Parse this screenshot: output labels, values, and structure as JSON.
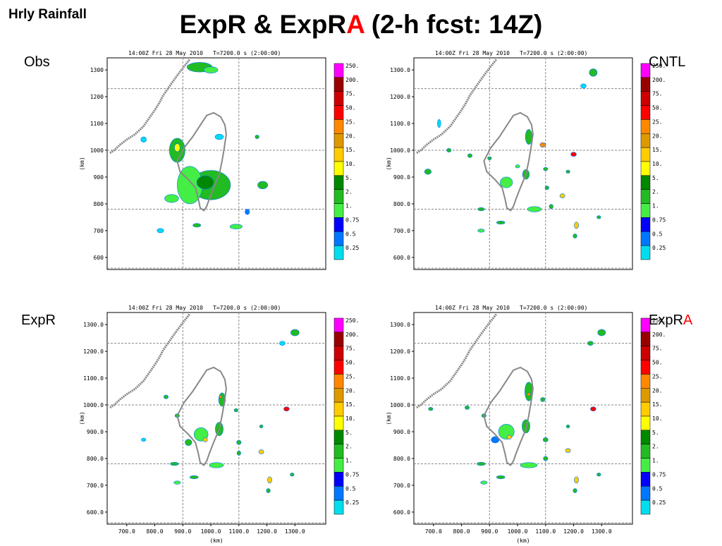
{
  "slide": {
    "corner_title": "Hrly Rainfall",
    "title_part1": "ExpR & ExpR",
    "title_accent": "A",
    "title_part2": " (2-h fcst: 14Z)",
    "accent_color": "#ff0000"
  },
  "panels": [
    {
      "id": "obs",
      "label": "Obs",
      "label_accent": "",
      "header_time": "14:00Z Fri 28 May 2010",
      "header_t": "T=7200.0 s (2:00:00)",
      "ylabel": "(km)",
      "ytick_labels": [
        "1300",
        "1200",
        "1100",
        "1000",
        "900",
        "800",
        "700",
        "600"
      ],
      "xtick_labels": [],
      "xlabel": ""
    },
    {
      "id": "cntl",
      "label": "CNTL",
      "label_accent": "",
      "header_time": "14:00Z Fri 28 May 2010",
      "header_t": "T=7200.0 s (2:00:00)",
      "ylabel": "(km)",
      "ytick_labels": [
        "1300.0",
        "1200.0",
        "1100.0",
        "1000.0",
        "900.0",
        "800.0",
        "700.0",
        "600.0"
      ],
      "xtick_labels": [],
      "xlabel": ""
    },
    {
      "id": "expr",
      "label": "ExpR",
      "label_accent": "",
      "header_time": "14:00Z Fri 28 May 2010",
      "header_t": "T=7200.0 s (2:00:00)",
      "ylabel": "(km)",
      "ytick_labels": [
        "1300.0",
        "1200.0",
        "1100.0",
        "1000.0",
        "900.0",
        "800.0",
        "700.0",
        "600.0"
      ],
      "xtick_labels": [
        "700.0",
        "800.0",
        "900.0",
        "1000.0",
        "1100.0",
        "1200.0",
        "1300.0"
      ],
      "xlabel": "(km)"
    },
    {
      "id": "expra",
      "label": "ExpR",
      "label_accent": "A",
      "header_time": "14:00Z Fri 28 May 2010",
      "header_t": "T=7200.0 s (2:00:00)",
      "ylabel": "(km)",
      "ytick_labels": [
        "1300.0",
        "1200.0",
        "1100.0",
        "1000.0",
        "900.0",
        "800.0",
        "700.0",
        "600.0"
      ],
      "xtick_labels": [
        "700.0",
        "800.0",
        "900.0",
        "1000.0",
        "1100.0",
        "1200.0",
        "1300.0"
      ],
      "xlabel": "(km)"
    }
  ],
  "legend": {
    "labels": [
      "250.",
      "200.",
      "75.",
      "50.",
      "25.",
      "20.",
      "15.",
      "10.",
      "5.",
      "2.",
      "1.",
      "0.75",
      "0.5",
      "0.25"
    ],
    "colors": [
      "#ff00ff",
      "#990000",
      "#cc0000",
      "#ff0000",
      "#ff8800",
      "#dd9900",
      "#ffcc00",
      "#ffff00",
      "#008800",
      "#22bb22",
      "#44ee44",
      "#0000ff",
      "#0077ff",
      "#00ddee"
    ]
  },
  "plot": {
    "x_range_km": [
      630,
      1410
    ],
    "y_range_km": [
      555,
      1345
    ],
    "grid_x_km": [
      900,
      1100
    ],
    "grid_y_km": [
      560,
      780,
      1000,
      1230
    ],
    "island_color": "#888888",
    "grid_color": "#888888"
  },
  "rain_cells": {
    "obs": [
      {
        "x": 1000,
        "y": 870,
        "rx": 70,
        "ry": 55,
        "c": "#22bb22"
      },
      {
        "x": 925,
        "y": 870,
        "rx": 45,
        "ry": 70,
        "c": "#44ee44"
      },
      {
        "x": 980,
        "y": 880,
        "rx": 30,
        "ry": 25,
        "c": "#008800"
      },
      {
        "x": 880,
        "y": 1000,
        "rx": 28,
        "ry": 45,
        "c": "#22bb22"
      },
      {
        "x": 880,
        "y": 1010,
        "rx": 10,
        "ry": 15,
        "c": "#ffff00"
      },
      {
        "x": 860,
        "y": 820,
        "rx": 25,
        "ry": 15,
        "c": "#44ee44"
      },
      {
        "x": 960,
        "y": 1310,
        "rx": 45,
        "ry": 18,
        "c": "#22bb22"
      },
      {
        "x": 1000,
        "y": 1300,
        "rx": 25,
        "ry": 12,
        "c": "#44ee44"
      },
      {
        "x": 1030,
        "y": 1050,
        "rx": 15,
        "ry": 10,
        "c": "#00ddee"
      },
      {
        "x": 1185,
        "y": 870,
        "rx": 18,
        "ry": 14,
        "c": "#22bb22"
      },
      {
        "x": 1090,
        "y": 715,
        "rx": 22,
        "ry": 9,
        "c": "#44ee44"
      },
      {
        "x": 950,
        "y": 720,
        "rx": 14,
        "ry": 7,
        "c": "#22bb22"
      },
      {
        "x": 1165,
        "y": 1050,
        "rx": 7,
        "ry": 7,
        "c": "#22bb22"
      },
      {
        "x": 1130,
        "y": 770,
        "rx": 8,
        "ry": 10,
        "c": "#0077ff"
      },
      {
        "x": 820,
        "y": 700,
        "rx": 12,
        "ry": 8,
        "c": "#00ddee"
      },
      {
        "x": 760,
        "y": 1040,
        "rx": 10,
        "ry": 10,
        "c": "#00ddee"
      }
    ],
    "cntl": [
      {
        "x": 1040,
        "y": 1050,
        "rx": 12,
        "ry": 28,
        "c": "#22bb22"
      },
      {
        "x": 1030,
        "y": 910,
        "rx": 12,
        "ry": 18,
        "c": "#22bb22"
      },
      {
        "x": 960,
        "y": 880,
        "rx": 22,
        "ry": 20,
        "c": "#44ee44"
      },
      {
        "x": 1090,
        "y": 1020,
        "rx": 10,
        "ry": 9,
        "c": "#ff8800"
      },
      {
        "x": 1000,
        "y": 940,
        "rx": 8,
        "ry": 6,
        "c": "#44ee44"
      },
      {
        "x": 1200,
        "y": 985,
        "rx": 10,
        "ry": 8,
        "c": "#ff0000"
      },
      {
        "x": 1100,
        "y": 930,
        "rx": 8,
        "ry": 6,
        "c": "#22bb22"
      },
      {
        "x": 1180,
        "y": 920,
        "rx": 7,
        "ry": 6,
        "c": "#22bb22"
      },
      {
        "x": 1105,
        "y": 860,
        "rx": 7,
        "ry": 7,
        "c": "#22bb22"
      },
      {
        "x": 1160,
        "y": 830,
        "rx": 9,
        "ry": 8,
        "c": "#ffcc00"
      },
      {
        "x": 1120,
        "y": 790,
        "rx": 7,
        "ry": 8,
        "c": "#22bb22"
      },
      {
        "x": 1210,
        "y": 720,
        "rx": 8,
        "ry": 12,
        "c": "#ffcc00"
      },
      {
        "x": 1205,
        "y": 680,
        "rx": 7,
        "ry": 8,
        "c": "#22bb22"
      },
      {
        "x": 1060,
        "y": 780,
        "rx": 25,
        "ry": 10,
        "c": "#44ee44"
      },
      {
        "x": 940,
        "y": 730,
        "rx": 15,
        "ry": 6,
        "c": "#22bb22"
      },
      {
        "x": 870,
        "y": 780,
        "rx": 12,
        "ry": 6,
        "c": "#22bb22"
      },
      {
        "x": 870,
        "y": 700,
        "rx": 12,
        "ry": 6,
        "c": "#44ee44"
      },
      {
        "x": 680,
        "y": 920,
        "rx": 12,
        "ry": 10,
        "c": "#22bb22"
      },
      {
        "x": 830,
        "y": 980,
        "rx": 8,
        "ry": 7,
        "c": "#22bb22"
      },
      {
        "x": 755,
        "y": 1000,
        "rx": 8,
        "ry": 7,
        "c": "#22bb22"
      },
      {
        "x": 900,
        "y": 970,
        "rx": 7,
        "ry": 6,
        "c": "#22bb22"
      },
      {
        "x": 1270,
        "y": 1290,
        "rx": 14,
        "ry": 14,
        "c": "#22bb22"
      },
      {
        "x": 1235,
        "y": 1240,
        "rx": 10,
        "ry": 8,
        "c": "#00ddee"
      },
      {
        "x": 1290,
        "y": 750,
        "rx": 7,
        "ry": 6,
        "c": "#22bb22"
      },
      {
        "x": 720,
        "y": 1100,
        "rx": 6,
        "ry": 15,
        "c": "#00ddee"
      }
    ],
    "expr": [
      {
        "x": 1040,
        "y": 1020,
        "rx": 12,
        "ry": 25,
        "c": "#22bb22"
      },
      {
        "x": 1030,
        "y": 910,
        "rx": 14,
        "ry": 25,
        "c": "#22bb22"
      },
      {
        "x": 965,
        "y": 890,
        "rx": 25,
        "ry": 25,
        "c": "#44ee44"
      },
      {
        "x": 980,
        "y": 870,
        "rx": 8,
        "ry": 8,
        "c": "#ffcc00"
      },
      {
        "x": 920,
        "y": 860,
        "rx": 12,
        "ry": 12,
        "c": "#22bb22"
      },
      {
        "x": 1035,
        "y": 1030,
        "rx": 5,
        "ry": 5,
        "c": "#ff8800"
      },
      {
        "x": 1090,
        "y": 980,
        "rx": 7,
        "ry": 6,
        "c": "#22bb22"
      },
      {
        "x": 1270,
        "y": 985,
        "rx": 10,
        "ry": 8,
        "c": "#ff0000"
      },
      {
        "x": 1100,
        "y": 860,
        "rx": 8,
        "ry": 8,
        "c": "#22bb22"
      },
      {
        "x": 1180,
        "y": 920,
        "rx": 6,
        "ry": 6,
        "c": "#22bb22"
      },
      {
        "x": 1180,
        "y": 825,
        "rx": 9,
        "ry": 8,
        "c": "#ffcc00"
      },
      {
        "x": 1100,
        "y": 820,
        "rx": 7,
        "ry": 8,
        "c": "#22bb22"
      },
      {
        "x": 1210,
        "y": 720,
        "rx": 8,
        "ry": 12,
        "c": "#ffcc00"
      },
      {
        "x": 1205,
        "y": 680,
        "rx": 7,
        "ry": 8,
        "c": "#22bb22"
      },
      {
        "x": 1020,
        "y": 775,
        "rx": 25,
        "ry": 10,
        "c": "#44ee44"
      },
      {
        "x": 940,
        "y": 730,
        "rx": 15,
        "ry": 6,
        "c": "#22bb22"
      },
      {
        "x": 870,
        "y": 780,
        "rx": 15,
        "ry": 6,
        "c": "#22bb22"
      },
      {
        "x": 880,
        "y": 710,
        "rx": 12,
        "ry": 6,
        "c": "#44ee44"
      },
      {
        "x": 760,
        "y": 870,
        "rx": 8,
        "ry": 6,
        "c": "#00ddee"
      },
      {
        "x": 880,
        "y": 960,
        "rx": 8,
        "ry": 7,
        "c": "#22bb22"
      },
      {
        "x": 840,
        "y": 1030,
        "rx": 8,
        "ry": 7,
        "c": "#22bb22"
      },
      {
        "x": 1300,
        "y": 1270,
        "rx": 15,
        "ry": 12,
        "c": "#22bb22"
      },
      {
        "x": 1255,
        "y": 1230,
        "rx": 10,
        "ry": 8,
        "c": "#00ddee"
      },
      {
        "x": 1290,
        "y": 740,
        "rx": 7,
        "ry": 6,
        "c": "#22bb22"
      }
    ],
    "expra": [
      {
        "x": 1040,
        "y": 1050,
        "rx": 14,
        "ry": 35,
        "c": "#22bb22"
      },
      {
        "x": 1030,
        "y": 920,
        "rx": 14,
        "ry": 25,
        "c": "#22bb22"
      },
      {
        "x": 960,
        "y": 900,
        "rx": 28,
        "ry": 28,
        "c": "#44ee44"
      },
      {
        "x": 970,
        "y": 880,
        "rx": 8,
        "ry": 8,
        "c": "#ffcc00"
      },
      {
        "x": 1040,
        "y": 1040,
        "rx": 6,
        "ry": 6,
        "c": "#ff8800"
      },
      {
        "x": 920,
        "y": 870,
        "rx": 14,
        "ry": 12,
        "c": "#0077ff"
      },
      {
        "x": 1090,
        "y": 1020,
        "rx": 8,
        "ry": 8,
        "c": "#22bb22"
      },
      {
        "x": 1270,
        "y": 985,
        "rx": 10,
        "ry": 8,
        "c": "#ff0000"
      },
      {
        "x": 1100,
        "y": 870,
        "rx": 9,
        "ry": 8,
        "c": "#22bb22"
      },
      {
        "x": 1180,
        "y": 920,
        "rx": 6,
        "ry": 6,
        "c": "#22bb22"
      },
      {
        "x": 1180,
        "y": 830,
        "rx": 9,
        "ry": 8,
        "c": "#ffcc00"
      },
      {
        "x": 1100,
        "y": 800,
        "rx": 8,
        "ry": 8,
        "c": "#22bb22"
      },
      {
        "x": 1210,
        "y": 720,
        "rx": 8,
        "ry": 12,
        "c": "#ffcc00"
      },
      {
        "x": 1205,
        "y": 680,
        "rx": 7,
        "ry": 8,
        "c": "#22bb22"
      },
      {
        "x": 1040,
        "y": 775,
        "rx": 30,
        "ry": 10,
        "c": "#44ee44"
      },
      {
        "x": 940,
        "y": 730,
        "rx": 15,
        "ry": 6,
        "c": "#22bb22"
      },
      {
        "x": 870,
        "y": 780,
        "rx": 15,
        "ry": 6,
        "c": "#22bb22"
      },
      {
        "x": 880,
        "y": 710,
        "rx": 12,
        "ry": 6,
        "c": "#44ee44"
      },
      {
        "x": 690,
        "y": 985,
        "rx": 8,
        "ry": 6,
        "c": "#22bb22"
      },
      {
        "x": 820,
        "y": 990,
        "rx": 8,
        "ry": 7,
        "c": "#22bb22"
      },
      {
        "x": 880,
        "y": 960,
        "rx": 8,
        "ry": 7,
        "c": "#22bb22"
      },
      {
        "x": 1300,
        "y": 1270,
        "rx": 14,
        "ry": 12,
        "c": "#22bb22"
      },
      {
        "x": 1260,
        "y": 1230,
        "rx": 10,
        "ry": 8,
        "c": "#22bb22"
      },
      {
        "x": 1290,
        "y": 740,
        "rx": 7,
        "ry": 6,
        "c": "#22bb22"
      }
    ]
  }
}
